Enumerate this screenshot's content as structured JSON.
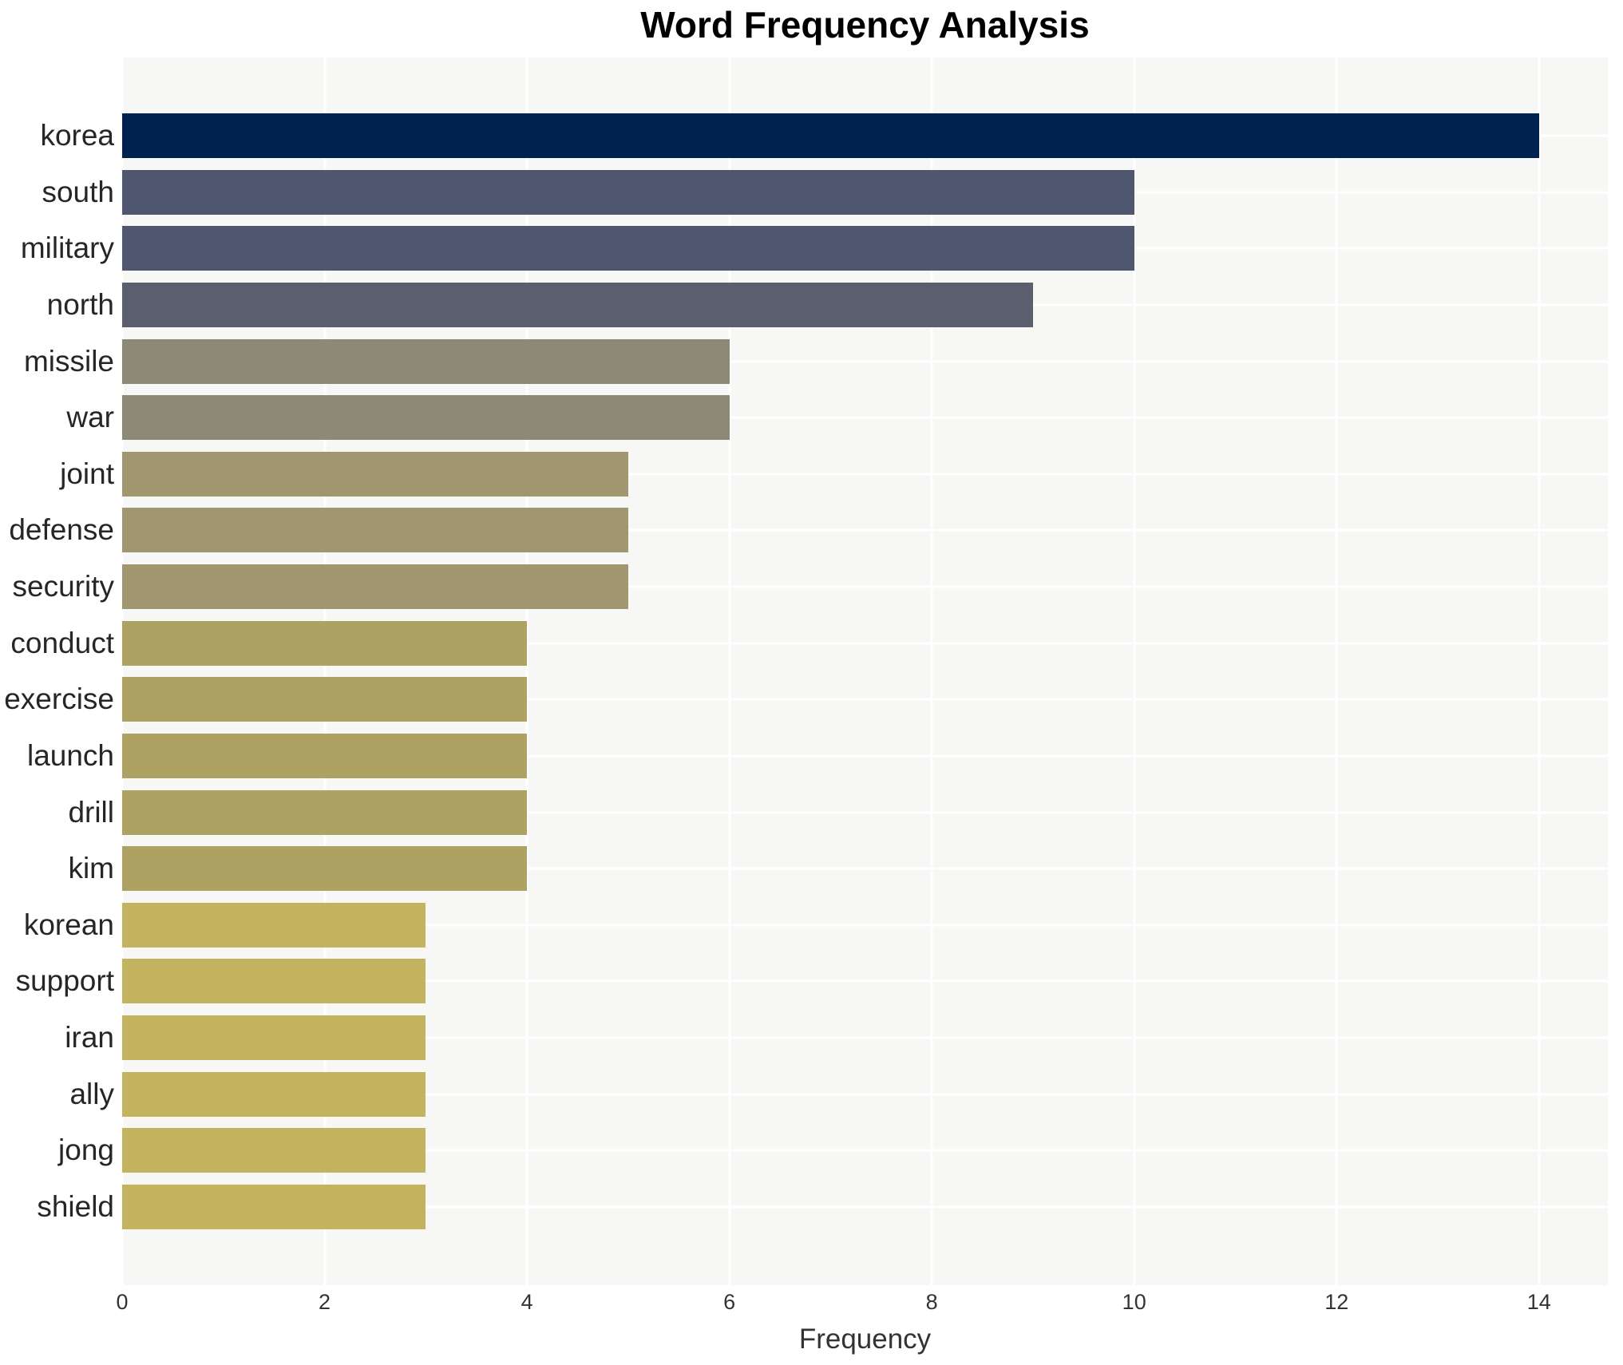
{
  "chart_data": {
    "type": "bar",
    "orientation": "horizontal",
    "title": "Word Frequency Analysis",
    "xlabel": "Frequency",
    "ylabel": "",
    "categories": [
      "korea",
      "south",
      "military",
      "north",
      "missile",
      "war",
      "joint",
      "defense",
      "security",
      "conduct",
      "exercise",
      "launch",
      "drill",
      "kim",
      "korean",
      "support",
      "iran",
      "ally",
      "jong",
      "shield"
    ],
    "values": [
      14,
      10,
      10,
      9,
      6,
      6,
      5,
      5,
      5,
      4,
      4,
      4,
      4,
      4,
      3,
      3,
      3,
      3,
      3,
      3
    ],
    "bar_colors": [
      "#00224e",
      "#4e5670",
      "#4e5670",
      "#5b5f6d",
      "#8e8877",
      "#8e8877",
      "#a0966f",
      "#a0966f",
      "#a0966f",
      "#ada262",
      "#ada262",
      "#ada262",
      "#ada262",
      "#ada262",
      "#c3b35e",
      "#c3b35e",
      "#c3b35e",
      "#c3b35e",
      "#c3b35e",
      "#c3b35e"
    ],
    "value_color_map": {
      "14": "#00224e",
      "10": "#4e5670",
      "9": "#5b5f6d",
      "6": "#8e8877",
      "5": "#a0966f",
      "4": "#ada262",
      "3": "#c3b35e"
    },
    "xticks": [
      0,
      2,
      4,
      6,
      8,
      10,
      12,
      14
    ],
    "xlim": [
      0,
      14.68
    ],
    "grid": true,
    "gridline_color": "#ffffff",
    "plot_bg": "#f7f7f5",
    "figure_bg": "#ffffff",
    "title_color": "#000000",
    "y_label_color": "#262626",
    "tick_label_color": "#333333",
    "legend": "none"
  }
}
